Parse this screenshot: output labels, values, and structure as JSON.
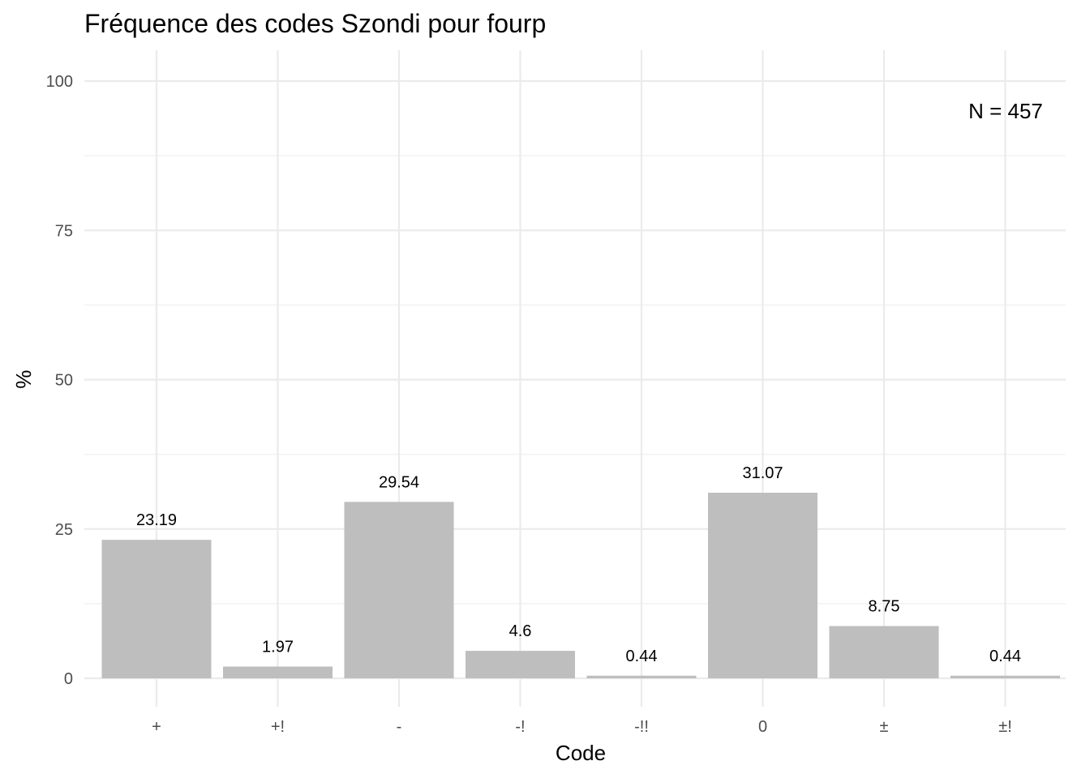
{
  "chart_data": {
    "type": "bar",
    "title": "Fréquence des codes Szondi pour fourp",
    "xlabel": "Code",
    "ylabel": "%",
    "categories": [
      "+",
      "+!",
      "-",
      "-!",
      "-!!",
      "0",
      "±",
      "±!"
    ],
    "values": [
      23.19,
      1.97,
      29.54,
      4.6,
      0.44,
      31.07,
      8.75,
      0.44
    ],
    "value_labels": [
      "23.19",
      "1.97",
      "29.54",
      "4.6",
      "0.44",
      "31.07",
      "8.75",
      "0.44"
    ],
    "ylim": [
      0,
      100
    ],
    "yticks": [
      0,
      25,
      50,
      75,
      100
    ],
    "annotation": "N = 457",
    "annotation_position": "top-right",
    "bar_color": "#bebebe",
    "grid": true,
    "legend": "none"
  }
}
